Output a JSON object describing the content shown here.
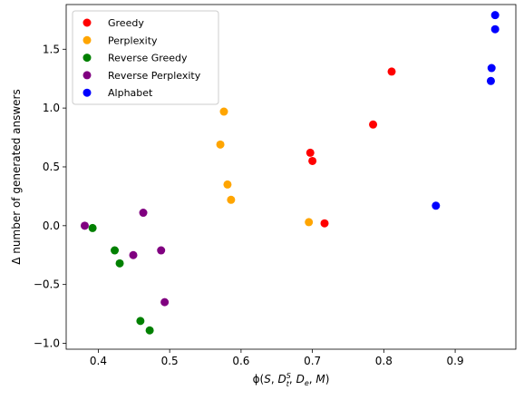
{
  "chart_data": {
    "type": "scatter",
    "xlabel": "ϕ(S, D_t^S, D_e, M)",
    "ylabel": "Δ number of generated answers",
    "xlim": [
      0.355,
      0.985
    ],
    "ylim": [
      -1.05,
      1.88
    ],
    "xticks": [
      0.4,
      0.5,
      0.6,
      0.7,
      0.8,
      0.9
    ],
    "yticks": [
      -1.0,
      -0.5,
      0.0,
      0.5,
      1.0,
      1.5
    ],
    "xtick_labels": [
      "0.4",
      "0.5",
      "0.6",
      "0.7",
      "0.8",
      "0.9"
    ],
    "ytick_labels": [
      "−1.0",
      "−0.5",
      "0.0",
      "0.5",
      "1.0",
      "1.5"
    ],
    "grid": false,
    "legend_position": "top-left",
    "series": [
      {
        "name": "Greedy",
        "color": "#ff0000",
        "points": [
          [
            0.811,
            1.31
          ],
          [
            0.785,
            0.86
          ],
          [
            0.697,
            0.62
          ],
          [
            0.7,
            0.55
          ],
          [
            0.717,
            0.02
          ]
        ]
      },
      {
        "name": "Perplexity",
        "color": "#ffa500",
        "points": [
          [
            0.576,
            0.97
          ],
          [
            0.571,
            0.69
          ],
          [
            0.581,
            0.35
          ],
          [
            0.586,
            0.22
          ],
          [
            0.695,
            0.03
          ]
        ]
      },
      {
        "name": "Reverse Greedy",
        "color": "#008000",
        "points": [
          [
            0.392,
            -0.02
          ],
          [
            0.423,
            -0.21
          ],
          [
            0.43,
            -0.32
          ],
          [
            0.459,
            -0.81
          ],
          [
            0.472,
            -0.89
          ]
        ]
      },
      {
        "name": "Reverse Perplexity",
        "color": "#800080",
        "points": [
          [
            0.381,
            0.0
          ],
          [
            0.463,
            0.11
          ],
          [
            0.449,
            -0.25
          ],
          [
            0.488,
            -0.21
          ],
          [
            0.493,
            -0.65
          ]
        ]
      },
      {
        "name": "Alphabet",
        "color": "#0000ff",
        "points": [
          [
            0.956,
            1.79
          ],
          [
            0.956,
            1.67
          ],
          [
            0.951,
            1.34
          ],
          [
            0.95,
            1.23
          ],
          [
            0.873,
            0.17
          ]
        ]
      }
    ]
  }
}
